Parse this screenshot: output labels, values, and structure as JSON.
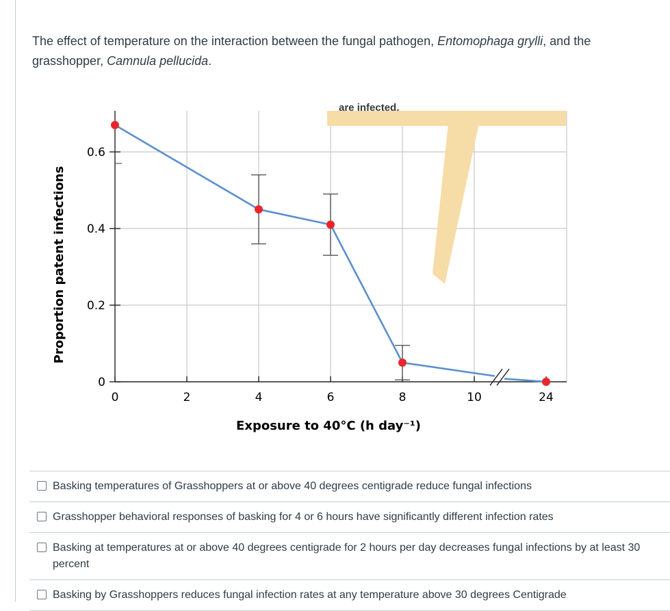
{
  "question": {
    "prefix": "The effect of temperature on the interaction between the fungal pathogen, ",
    "pathogen": "Entomophaga grylli",
    "middle": ", and the grasshopper, ",
    "host": "Camnula pellucida",
    "suffix": "."
  },
  "chart_data": {
    "type": "line",
    "xlabel": "Exposure to 40°C (h day⁻¹)",
    "ylabel": "Proportion patent infections",
    "x_tick_labels": [
      "0",
      "2",
      "4",
      "6",
      "8",
      "10",
      "24"
    ],
    "y_tick_labels": [
      "0",
      "0.2",
      "0.4",
      "0.6"
    ],
    "ylim": [
      0,
      0.7
    ],
    "axis_break_between": [
      "10",
      "24"
    ],
    "grid": true,
    "series": [
      {
        "x": [
          0,
          4,
          6,
          8,
          24
        ],
        "y": [
          0.67,
          0.45,
          0.41,
          0.05,
          0.0
        ],
        "error": [
          null,
          0.09,
          0.08,
          0.045,
          null
        ]
      }
    ],
    "annotation_fragment": "are infected.",
    "colors": {
      "line": "#5b8fcf",
      "marker": "#e8262c",
      "grid": "#c8c8c8",
      "callout": "#f6dca6"
    }
  },
  "answers": [
    "Basking temperatures of Grasshoppers at or above 40 degrees centigrade reduce fungal infections",
    "Grasshopper behavioral responses of basking for 4 or 6 hours have significantly different infection rates",
    "Basking at temperatures at or above 40 degrees centigrade for 2 hours per day decreases fungal infections by at least 30 percent",
    "Basking by Grasshoppers reduces fungal infection rates at any temperature above 30 degrees Centigrade"
  ]
}
